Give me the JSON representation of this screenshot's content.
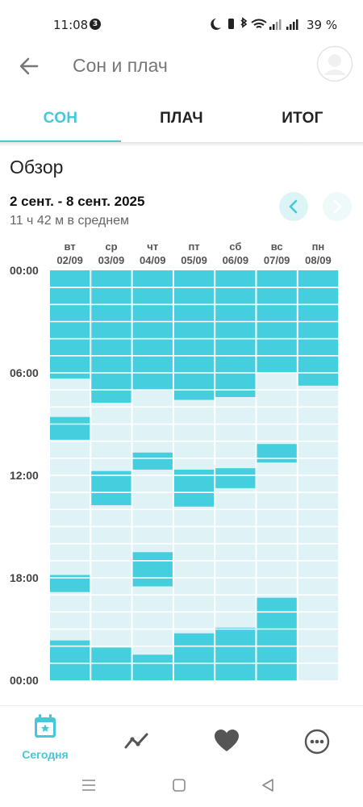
{
  "status_bar": {
    "time": "11:08",
    "notification_count": "3",
    "battery": "39 %"
  },
  "app_bar": {
    "title": "Сон и плач"
  },
  "tabs": [
    {
      "label": "СОН",
      "active": true
    },
    {
      "label": "ПЛАЧ",
      "active": false
    },
    {
      "label": "ИТОГ",
      "active": false
    }
  ],
  "overview": {
    "title": "Обзор",
    "date_range": "2 сент. - 8 сент. 2025",
    "average": "11 ч 42 м в среднем"
  },
  "colors": {
    "accent": "#45C8D8",
    "sleep_fill": "#45CFDE",
    "empty_fill": "#DFF3F7",
    "text_dark": "#222222"
  },
  "chart_data": {
    "type": "heatmap",
    "days": [
      {
        "weekday": "вт",
        "date": "02/09",
        "sleep": [
          [
            "00:00",
            "06:20"
          ],
          [
            "08:35",
            "09:55"
          ],
          [
            "17:50",
            "18:50"
          ],
          [
            "21:40",
            "24:00"
          ]
        ]
      },
      {
        "weekday": "ср",
        "date": "03/09",
        "sleep": [
          [
            "00:00",
            "07:45"
          ],
          [
            "11:45",
            "13:45"
          ],
          [
            "22:05",
            "24:00"
          ]
        ]
      },
      {
        "weekday": "чт",
        "date": "04/09",
        "sleep": [
          [
            "00:00",
            "07:00"
          ],
          [
            "10:40",
            "11:40"
          ],
          [
            "16:30",
            "18:30"
          ],
          [
            "22:30",
            "24:00"
          ]
        ]
      },
      {
        "weekday": "пт",
        "date": "05/09",
        "sleep": [
          [
            "00:00",
            "07:35"
          ],
          [
            "11:40",
            "13:50"
          ],
          [
            "21:15",
            "24:00"
          ]
        ]
      },
      {
        "weekday": "сб",
        "date": "06/09",
        "sleep": [
          [
            "00:00",
            "07:25"
          ],
          [
            "11:35",
            "12:45"
          ],
          [
            "20:55",
            "24:00"
          ]
        ]
      },
      {
        "weekday": "вс",
        "date": "07/09",
        "sleep": [
          [
            "00:00",
            "06:00"
          ],
          [
            "10:10",
            "11:15"
          ],
          [
            "19:10",
            "24:00"
          ]
        ]
      },
      {
        "weekday": "пн",
        "date": "08/09",
        "sleep": [
          [
            "00:00",
            "06:45"
          ]
        ]
      }
    ],
    "y_ticks": [
      "00:00",
      "06:00",
      "12:00",
      "18:00",
      "00:00"
    ],
    "y_range_hours": [
      0,
      24
    ],
    "grid": true
  },
  "bottom_nav": [
    {
      "label": "Сегодня",
      "icon": "calendar-star-icon",
      "active": true
    },
    {
      "label": "",
      "icon": "trend-chart-icon",
      "active": false
    },
    {
      "label": "",
      "icon": "heart-icon",
      "active": false
    },
    {
      "label": "",
      "icon": "more-icon",
      "active": false
    }
  ],
  "system_nav": {
    "icons": [
      "menu-icon",
      "home-icon",
      "back-icon"
    ]
  }
}
